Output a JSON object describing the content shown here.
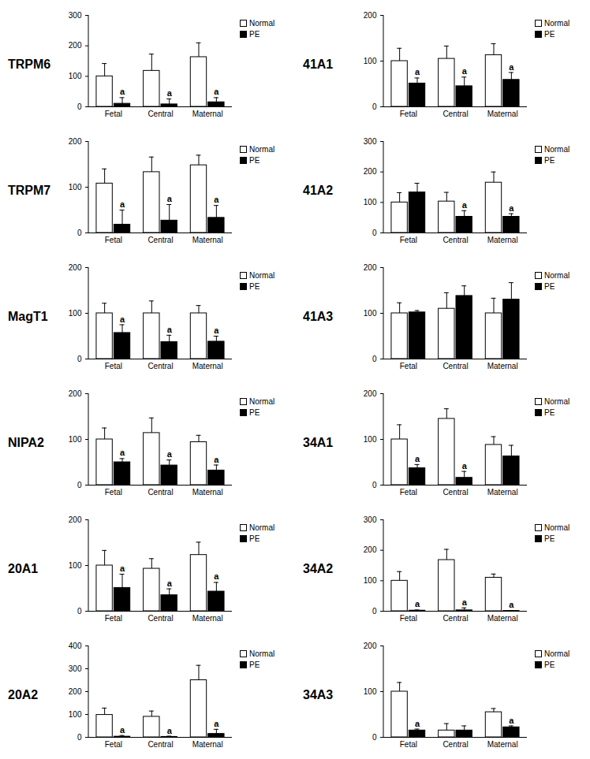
{
  "chart_data": [
    {
      "type": "bar",
      "title": "TRPM6",
      "categories": [
        "Fetal",
        "Central",
        "Maternal"
      ],
      "series": [
        {
          "name": "Normal",
          "color": "#ffffff",
          "values": [
            100,
            118,
            163
          ],
          "errors": [
            42,
            55,
            47
          ]
        },
        {
          "name": "PE",
          "color": "#000000",
          "values": [
            10,
            8,
            15
          ],
          "errors": [
            20,
            18,
            15
          ]
        }
      ],
      "ylim": [
        0,
        300
      ],
      "yticks": [
        0,
        100,
        200,
        300
      ],
      "legend": "right",
      "annotations": [
        {
          "category": "Fetal",
          "series": "PE",
          "text": "a"
        },
        {
          "category": "Central",
          "series": "PE",
          "text": "a"
        },
        {
          "category": "Maternal",
          "series": "PE",
          "text": "a"
        }
      ]
    },
    {
      "type": "bar",
      "title": "41A1",
      "categories": [
        "Fetal",
        "Central",
        "Maternal"
      ],
      "series": [
        {
          "name": "Normal",
          "color": "#ffffff",
          "values": [
            100,
            105,
            113
          ],
          "errors": [
            28,
            28,
            25
          ]
        },
        {
          "name": "PE",
          "color": "#000000",
          "values": [
            51,
            45,
            59
          ],
          "errors": [
            12,
            20,
            16
          ]
        }
      ],
      "ylim": [
        0,
        200
      ],
      "yticks": [
        0,
        100,
        200
      ],
      "legend": "right",
      "annotations": [
        {
          "category": "Fetal",
          "series": "PE",
          "text": "a"
        },
        {
          "category": "Central",
          "series": "PE",
          "text": "a"
        },
        {
          "category": "Maternal",
          "series": "PE",
          "text": "a"
        }
      ]
    },
    {
      "type": "bar",
      "title": "TRPM7",
      "categories": [
        "Fetal",
        "Central",
        "Maternal"
      ],
      "series": [
        {
          "name": "Normal",
          "color": "#ffffff",
          "values": [
            108,
            133,
            148
          ],
          "errors": [
            32,
            33,
            22
          ]
        },
        {
          "name": "PE",
          "color": "#000000",
          "values": [
            18,
            27,
            33
          ],
          "errors": [
            32,
            35,
            27
          ]
        }
      ],
      "ylim": [
        0,
        200
      ],
      "yticks": [
        0,
        100,
        200
      ],
      "legend": "right",
      "annotations": [
        {
          "category": "Fetal",
          "series": "PE",
          "text": "a"
        },
        {
          "category": "Central",
          "series": "PE",
          "text": "a"
        },
        {
          "category": "Maternal",
          "series": "PE",
          "text": "a"
        }
      ]
    },
    {
      "type": "bar",
      "title": "41A2",
      "categories": [
        "Fetal",
        "Central",
        "Maternal"
      ],
      "series": [
        {
          "name": "Normal",
          "color": "#ffffff",
          "values": [
            100,
            103,
            165
          ],
          "errors": [
            32,
            30,
            35
          ]
        },
        {
          "name": "PE",
          "color": "#000000",
          "values": [
            133,
            53,
            53
          ],
          "errors": [
            30,
            20,
            10
          ]
        }
      ],
      "ylim": [
        0,
        300
      ],
      "yticks": [
        0,
        100,
        200,
        300
      ],
      "legend": "right",
      "annotations": [
        {
          "category": "Central",
          "series": "PE",
          "text": "a"
        },
        {
          "category": "Maternal",
          "series": "PE",
          "text": "a"
        }
      ]
    },
    {
      "type": "bar",
      "title": "MagT1",
      "categories": [
        "Fetal",
        "Central",
        "Maternal"
      ],
      "series": [
        {
          "name": "Normal",
          "color": "#ffffff",
          "values": [
            100,
            100,
            100
          ],
          "errors": [
            22,
            27,
            17
          ]
        },
        {
          "name": "PE",
          "color": "#000000",
          "values": [
            57,
            37,
            38
          ],
          "errors": [
            18,
            15,
            12
          ]
        }
      ],
      "ylim": [
        0,
        200
      ],
      "yticks": [
        0,
        100,
        200
      ],
      "legend": "right",
      "annotations": [
        {
          "category": "Fetal",
          "series": "PE",
          "text": "a"
        },
        {
          "category": "Central",
          "series": "PE",
          "text": "a"
        },
        {
          "category": "Maternal",
          "series": "PE",
          "text": "a"
        }
      ]
    },
    {
      "type": "bar",
      "title": "41A3",
      "categories": [
        "Fetal",
        "Central",
        "Maternal"
      ],
      "series": [
        {
          "name": "Normal",
          "color": "#ffffff",
          "values": [
            100,
            110,
            100
          ],
          "errors": [
            23,
            35,
            33
          ]
        },
        {
          "name": "PE",
          "color": "#000000",
          "values": [
            102,
            138,
            130
          ],
          "errors": [
            4,
            22,
            37
          ]
        }
      ],
      "ylim": [
        0,
        200
      ],
      "yticks": [
        0,
        100,
        200
      ],
      "legend": "right",
      "annotations": []
    },
    {
      "type": "bar",
      "title": "NIPA2",
      "categories": [
        "Fetal",
        "Central",
        "Maternal"
      ],
      "series": [
        {
          "name": "Normal",
          "color": "#ffffff",
          "values": [
            100,
            114,
            94
          ],
          "errors": [
            25,
            33,
            15
          ]
        },
        {
          "name": "PE",
          "color": "#000000",
          "values": [
            50,
            43,
            32
          ],
          "errors": [
            8,
            12,
            12
          ]
        }
      ],
      "ylim": [
        0,
        200
      ],
      "yticks": [
        0,
        100,
        200
      ],
      "legend": "right",
      "annotations": [
        {
          "category": "Fetal",
          "series": "PE",
          "text": "a"
        },
        {
          "category": "Central",
          "series": "PE",
          "text": "a"
        },
        {
          "category": "Maternal",
          "series": "PE",
          "text": "a"
        }
      ]
    },
    {
      "type": "bar",
      "title": "34A1",
      "categories": [
        "Fetal",
        "Central",
        "Maternal"
      ],
      "series": [
        {
          "name": "Normal",
          "color": "#ffffff",
          "values": [
            100,
            145,
            88
          ],
          "errors": [
            32,
            22,
            18
          ]
        },
        {
          "name": "PE",
          "color": "#000000",
          "values": [
            37,
            16,
            63
          ],
          "errors": [
            8,
            14,
            24
          ]
        }
      ],
      "ylim": [
        0,
        200
      ],
      "yticks": [
        0,
        100,
        200
      ],
      "legend": "right",
      "annotations": [
        {
          "category": "Fetal",
          "series": "PE",
          "text": "a"
        },
        {
          "category": "Central",
          "series": "PE",
          "text": "a"
        }
      ]
    },
    {
      "type": "bar",
      "title": "20A1",
      "categories": [
        "Fetal",
        "Central",
        "Maternal"
      ],
      "series": [
        {
          "name": "Normal",
          "color": "#ffffff",
          "values": [
            100,
            93,
            123
          ],
          "errors": [
            33,
            22,
            28
          ]
        },
        {
          "name": "PE",
          "color": "#000000",
          "values": [
            51,
            35,
            43
          ],
          "errors": [
            30,
            14,
            20
          ]
        }
      ],
      "ylim": [
        0,
        200
      ],
      "yticks": [
        0,
        100,
        200
      ],
      "legend": "right",
      "annotations": [
        {
          "category": "Fetal",
          "series": "PE",
          "text": "a"
        },
        {
          "category": "Central",
          "series": "PE",
          "text": "a"
        },
        {
          "category": "Maternal",
          "series": "PE",
          "text": "a"
        }
      ]
    },
    {
      "type": "bar",
      "title": "34A2",
      "categories": [
        "Fetal",
        "Central",
        "Maternal"
      ],
      "series": [
        {
          "name": "Normal",
          "color": "#ffffff",
          "values": [
            100,
            168,
            110
          ],
          "errors": [
            30,
            35,
            12
          ]
        },
        {
          "name": "PE",
          "color": "#000000",
          "values": [
            2,
            3,
            1
          ],
          "errors": [
            2,
            8,
            1
          ]
        }
      ],
      "ylim": [
        0,
        300
      ],
      "yticks": [
        0,
        100,
        200,
        300
      ],
      "legend": "right",
      "annotations": [
        {
          "category": "Fetal",
          "series": "PE",
          "text": "a"
        },
        {
          "category": "Central",
          "series": "PE",
          "text": "a"
        },
        {
          "category": "Maternal",
          "series": "PE",
          "text": "a"
        }
      ]
    },
    {
      "type": "bar",
      "title": "20A2",
      "categories": [
        "Fetal",
        "Central",
        "Maternal"
      ],
      "series": [
        {
          "name": "Normal",
          "color": "#ffffff",
          "values": [
            98,
            90,
            250
          ],
          "errors": [
            30,
            25,
            65
          ]
        },
        {
          "name": "PE",
          "color": "#000000",
          "values": [
            3,
            2,
            15
          ],
          "errors": [
            5,
            3,
            20
          ]
        }
      ],
      "ylim": [
        0,
        400
      ],
      "yticks": [
        0,
        100,
        200,
        300,
        400
      ],
      "legend": "right",
      "annotations": [
        {
          "category": "Fetal",
          "series": "PE",
          "text": "a"
        },
        {
          "category": "Central",
          "series": "PE",
          "text": "a"
        },
        {
          "category": "Maternal",
          "series": "PE",
          "text": "a"
        }
      ]
    },
    {
      "type": "bar",
      "title": "34A3",
      "categories": [
        "Fetal",
        "Central",
        "Maternal"
      ],
      "series": [
        {
          "name": "Normal",
          "color": "#ffffff",
          "values": [
            100,
            15,
            55
          ],
          "errors": [
            20,
            15,
            8
          ]
        },
        {
          "name": "PE",
          "color": "#000000",
          "values": [
            15,
            15,
            22
          ],
          "errors": [
            3,
            10,
            3
          ]
        }
      ],
      "ylim": [
        0,
        200
      ],
      "yticks": [
        0,
        100,
        200
      ],
      "legend": "right",
      "annotations": [
        {
          "category": "Fetal",
          "series": "PE",
          "text": "a"
        },
        {
          "category": "Maternal",
          "series": "PE",
          "text": "a"
        }
      ]
    }
  ]
}
